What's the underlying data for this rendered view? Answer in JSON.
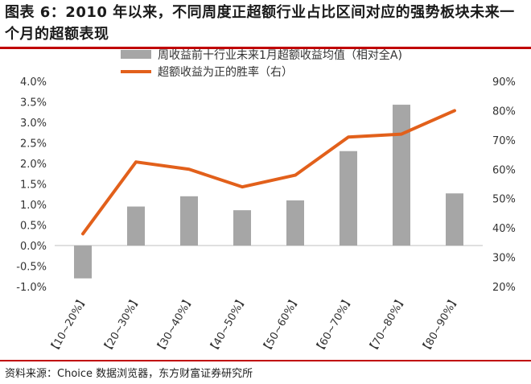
{
  "header": {
    "title": "图表 6：2010 年以来，不同周度正超额行业占比区间对应的强势板块未来一个月的超额表现"
  },
  "footer": {
    "source": "资料来源：Choice 数据浏览器，东方财富证券研究所"
  },
  "colors": {
    "bar": "#a6a6a6",
    "line": "#e2601b",
    "accent_rule": "#c00000"
  },
  "chart_data": {
    "type": "bar+line",
    "title": "",
    "categories": [
      "【10~20%】",
      "【20~30%】",
      "【30~40%】",
      "【40~50%】",
      "【50~60%】",
      "【60~70%】",
      "【70~80%】",
      "【80~90%】"
    ],
    "series": [
      {
        "name": "周收益前十行业未来1月超额收益均值（相对全A)",
        "type": "bar",
        "axis": "left",
        "values": [
          -0.8,
          0.95,
          1.2,
          0.86,
          1.1,
          2.3,
          3.43,
          1.27
        ]
      },
      {
        "name": "超额收益为正的胜率（右）",
        "type": "line",
        "axis": "right",
        "values": [
          38.0,
          62.5,
          60.0,
          54.0,
          58.0,
          71.0,
          72.0,
          80.0
        ]
      }
    ],
    "left_axis": {
      "ylim": [
        -1.0,
        4.0
      ],
      "ticks": [
        "-1.0%",
        "-0.5%",
        "0.0%",
        "0.5%",
        "1.0%",
        "1.5%",
        "2.0%",
        "2.5%",
        "3.0%",
        "3.5%",
        "4.0%"
      ]
    },
    "right_axis": {
      "ylim": [
        20,
        90
      ],
      "ticks": [
        "20%",
        "30%",
        "40%",
        "50%",
        "60%",
        "70%",
        "80%",
        "90%"
      ]
    },
    "legend_position": "top-center"
  }
}
